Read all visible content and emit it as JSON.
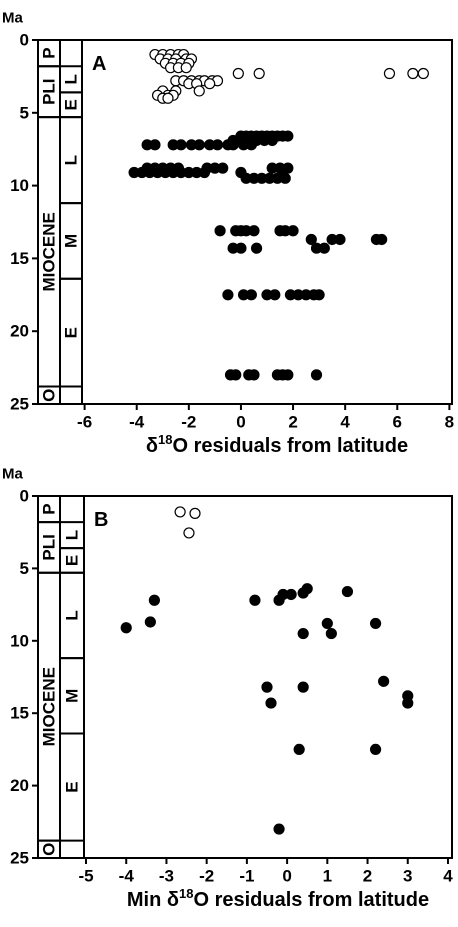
{
  "chart_data": [
    {
      "type": "scatter",
      "label": "A",
      "ylabel": "Ma",
      "xlabel": {
        "pre": "δ",
        "sup": "18",
        "post": "O residuals from latitude"
      },
      "xlim": [
        -6.1,
        8.1
      ],
      "xticks": [
        -6,
        -4,
        -2,
        0,
        2,
        4,
        6,
        8
      ],
      "ylim": [
        0,
        25
      ],
      "yticks": [
        0,
        5,
        10,
        15,
        20,
        25
      ],
      "y_inverted": true,
      "epochs": [
        {
          "label": "P",
          "from": 0,
          "to": 1.8
        },
        {
          "label": "PLI",
          "from": 1.8,
          "to": 5.3
        },
        {
          "label": "MIOCENE",
          "from": 5.3,
          "to": 23.8
        },
        {
          "label": "O",
          "from": 23.8,
          "to": 25
        }
      ],
      "subepochs": [
        {
          "label": "L",
          "from": 1.8,
          "to": 3.6
        },
        {
          "label": "E",
          "from": 3.6,
          "to": 5.3
        },
        {
          "label": "L",
          "from": 5.3,
          "to": 11.2
        },
        {
          "label": "M",
          "from": 11.2,
          "to": 16.4
        },
        {
          "label": "E",
          "from": 16.4,
          "to": 23.8
        }
      ],
      "series": [
        {
          "marker": "open",
          "color": "#000000",
          "x": [
            -3.3,
            -3.0,
            -2.7,
            -2.4,
            -2.2,
            -3.1,
            -2.8,
            -2.5,
            -2.1,
            -1.9,
            -2.9,
            -2.6,
            -2.3,
            -2.0,
            -2.7,
            -2.4,
            -2.1,
            -0.1,
            0.7,
            5.7,
            6.6,
            7.0,
            -2.5,
            -2.2,
            -1.9,
            -1.6,
            -1.4,
            -1.1,
            -0.9,
            -2.0,
            -1.7,
            -1.2,
            -3.0,
            -2.5,
            -1.6,
            -3.2,
            -2.8,
            -2.6,
            -3.0,
            -2.8
          ],
          "y": [
            1.0,
            1.0,
            1.0,
            1.0,
            1.0,
            1.3,
            1.3,
            1.3,
            1.3,
            1.3,
            1.6,
            1.6,
            1.6,
            1.6,
            1.9,
            1.9,
            1.9,
            2.3,
            2.3,
            2.3,
            2.3,
            2.3,
            2.8,
            2.8,
            2.8,
            2.8,
            2.8,
            2.8,
            2.8,
            3.0,
            3.0,
            3.0,
            3.5,
            3.5,
            3.5,
            3.8,
            3.8,
            3.8,
            4.0,
            4.0
          ]
        },
        {
          "marker": "filled",
          "color": "#000000",
          "x": [
            0,
            0.2,
            0.4,
            0.6,
            0.8,
            1.0,
            1.2,
            1.4,
            1.6,
            1.8,
            -0.3,
            0.0,
            0.3,
            0.6,
            0.9,
            1.2,
            -3.6,
            -3.3,
            -2.6,
            -2.3,
            -1.9,
            -1.6,
            -1.2,
            -0.9,
            -0.5,
            -0.3,
            0.1,
            0.4,
            -3.6,
            -3.3,
            -3.0,
            -2.7,
            -2.4,
            -1.3,
            -1.0,
            -0.7,
            1.2,
            1.5,
            1.8,
            -4.1,
            -3.8,
            -3.5,
            -3.2,
            -2.9,
            -2.6,
            -2.3,
            -2.0,
            -1.7,
            -1.4,
            0.0,
            1.6,
            0.2,
            0.5,
            0.8,
            1.1,
            1.4,
            1.7,
            -0.8,
            -0.2,
            0.0,
            0.2,
            0.5,
            1.5,
            1.7,
            2.0,
            2.7,
            3.5,
            3.8,
            5.2,
            5.4,
            -0.3,
            0.0,
            0.6,
            2.9,
            3.2,
            -0.5,
            0.1,
            0.4,
            1.0,
            1.3,
            1.9,
            2.2,
            2.5,
            2.8,
            3.0,
            -0.4,
            -0.2,
            0.3,
            0.5,
            1.4,
            1.6,
            1.8,
            2.9
          ],
          "y": [
            6.6,
            6.6,
            6.6,
            6.6,
            6.6,
            6.6,
            6.6,
            6.6,
            6.6,
            6.6,
            6.9,
            6.9,
            6.9,
            6.9,
            6.9,
            6.9,
            7.2,
            7.2,
            7.2,
            7.2,
            7.2,
            7.2,
            7.2,
            7.2,
            7.2,
            7.2,
            7.2,
            7.2,
            8.8,
            8.8,
            8.8,
            8.8,
            8.8,
            8.8,
            8.8,
            8.8,
            8.8,
            8.8,
            8.8,
            9.1,
            9.1,
            9.1,
            9.1,
            9.1,
            9.1,
            9.1,
            9.1,
            9.1,
            9.1,
            9.1,
            9.1,
            9.5,
            9.5,
            9.5,
            9.5,
            9.5,
            9.5,
            13.1,
            13.1,
            13.1,
            13.1,
            13.1,
            13.1,
            13.1,
            13.1,
            13.7,
            13.7,
            13.7,
            13.7,
            13.7,
            14.3,
            14.3,
            14.3,
            14.3,
            14.3,
            17.5,
            17.5,
            17.5,
            17.5,
            17.5,
            17.5,
            17.5,
            17.5,
            17.5,
            17.5,
            23.0,
            23.0,
            23.0,
            23.0,
            23.0,
            23.0,
            23.0,
            23.0
          ]
        }
      ]
    },
    {
      "type": "scatter",
      "label": "B",
      "ylabel": "Ma",
      "xlabel": {
        "pre": "Min δ",
        "sup": "18",
        "post": "O residuals from latitude"
      },
      "xlim": [
        -5.05,
        4.1
      ],
      "xticks": [
        -5,
        -4,
        -3,
        -2,
        -1,
        0,
        1,
        2,
        3,
        4
      ],
      "ylim": [
        0,
        25
      ],
      "yticks": [
        0,
        5,
        10,
        15,
        20,
        25
      ],
      "y_inverted": true,
      "epochs": [
        {
          "label": "P",
          "from": 0,
          "to": 1.8
        },
        {
          "label": "PLI",
          "from": 1.8,
          "to": 5.3
        },
        {
          "label": "MIOCENE",
          "from": 5.3,
          "to": 23.8
        },
        {
          "label": "O",
          "from": 23.8,
          "to": 25
        }
      ],
      "subepochs": [
        {
          "label": "L",
          "from": 1.8,
          "to": 3.6
        },
        {
          "label": "E",
          "from": 3.6,
          "to": 5.3
        },
        {
          "label": "L",
          "from": 5.3,
          "to": 11.2
        },
        {
          "label": "M",
          "from": 11.2,
          "to": 16.4
        },
        {
          "label": "E",
          "from": 16.4,
          "to": 23.8
        }
      ],
      "series": [
        {
          "marker": "open",
          "color": "#000000",
          "x": [
            -2.66,
            -2.29,
            -2.44
          ],
          "y": [
            1.1,
            1.2,
            2.55
          ]
        },
        {
          "marker": "filled",
          "color": "#000000",
          "x": [
            -4.0,
            -3.4,
            -3.3,
            -0.8,
            -0.2,
            -0.1,
            0.1,
            0.4,
            0.5,
            1.5,
            0.4,
            1.0,
            1.1,
            2.2,
            -0.5,
            -0.4,
            0.4,
            2.4,
            3.0,
            3.0,
            0.3,
            2.2,
            -0.2
          ],
          "y": [
            9.1,
            8.7,
            7.2,
            7.2,
            7.2,
            6.8,
            6.8,
            6.7,
            6.4,
            6.6,
            9.5,
            8.8,
            9.5,
            8.8,
            13.2,
            14.3,
            13.2,
            12.8,
            13.8,
            14.3,
            17.5,
            17.5,
            23.0
          ]
        }
      ]
    }
  ]
}
